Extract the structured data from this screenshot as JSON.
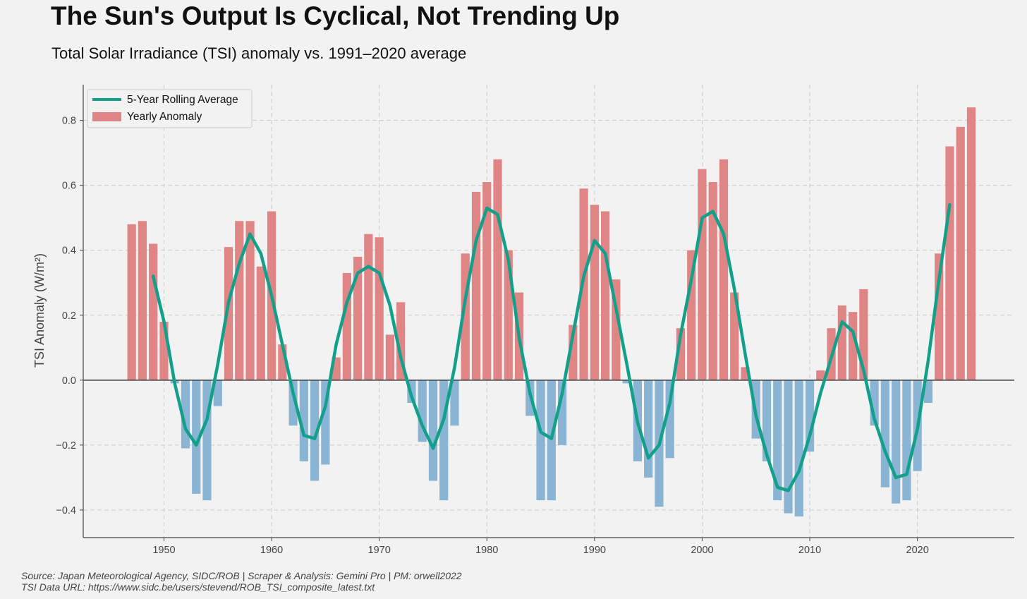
{
  "header": {
    "title": "The Sun's Output Is Cyclical, Not Trending Up",
    "subtitle": "Total Solar Irradiance (TSI) anomaly vs. 1991–2020 average"
  },
  "footer": {
    "source_line": "Source: Japan Meteorological Agency, SIDC/ROB | Scraper & Analysis: Gemini Pro | PM: orwell2022",
    "url_line": "TSI Data URL: https://www.sidc.be/users/stevend/ROB_TSI_composite_latest.txt"
  },
  "colors": {
    "positive_bar": "#e08585",
    "negative_bar": "#8ab4d4",
    "rolling_line": "#12a08a",
    "zero_line": "#444444",
    "grid": "#cccccc",
    "axis": "#444444"
  },
  "chart_data": {
    "type": "bar",
    "title": "The Sun's Output Is Cyclical, Not Trending Up",
    "subtitle": "Total Solar Irradiance (TSI) anomaly vs. 1991–2020 average",
    "xlabel": "",
    "ylabel": "TSI Anomaly (W/m²)",
    "xlim": [
      1942.5,
      2029
    ],
    "ylim": [
      -0.485,
      0.91
    ],
    "xticks": [
      1950,
      1960,
      1970,
      1980,
      1990,
      2000,
      2010,
      2020
    ],
    "yticks": [
      -0.4,
      -0.2,
      0.0,
      0.2,
      0.4,
      0.6,
      0.8
    ],
    "ytick_labels": [
      "−0.4",
      "−0.2",
      "0.0",
      "0.2",
      "0.4",
      "0.6",
      "0.8"
    ],
    "grid": true,
    "legend_position": "top-left",
    "series": [
      {
        "name": "Yearly Anomaly",
        "type": "bar",
        "x": [
          1947,
          1948,
          1949,
          1950,
          1951,
          1952,
          1953,
          1954,
          1955,
          1956,
          1957,
          1958,
          1959,
          1960,
          1961,
          1962,
          1963,
          1964,
          1965,
          1966,
          1967,
          1968,
          1969,
          1970,
          1971,
          1972,
          1973,
          1974,
          1975,
          1976,
          1977,
          1978,
          1979,
          1980,
          1981,
          1982,
          1983,
          1984,
          1985,
          1986,
          1987,
          1988,
          1989,
          1990,
          1991,
          1992,
          1993,
          1994,
          1995,
          1996,
          1997,
          1998,
          1999,
          2000,
          2001,
          2002,
          2003,
          2004,
          2005,
          2006,
          2007,
          2008,
          2009,
          2010,
          2011,
          2012,
          2013,
          2014,
          2015,
          2016,
          2017,
          2018,
          2019,
          2020,
          2021,
          2022,
          2023,
          2024,
          2025
        ],
        "values": [
          0.48,
          0.49,
          0.42,
          0.18,
          -0.01,
          -0.21,
          -0.35,
          -0.37,
          -0.08,
          0.41,
          0.49,
          0.49,
          0.35,
          0.52,
          0.11,
          -0.14,
          -0.25,
          -0.31,
          -0.26,
          0.07,
          0.33,
          0.38,
          0.45,
          0.44,
          0.14,
          0.24,
          -0.07,
          -0.19,
          -0.31,
          -0.37,
          -0.14,
          0.39,
          0.58,
          0.61,
          0.68,
          0.4,
          0.27,
          -0.11,
          -0.37,
          -0.37,
          -0.2,
          0.17,
          0.59,
          0.54,
          0.52,
          0.31,
          -0.01,
          -0.25,
          -0.3,
          -0.39,
          -0.24,
          0.16,
          0.4,
          0.65,
          0.61,
          0.68,
          0.27,
          0.04,
          -0.18,
          -0.25,
          -0.37,
          -0.41,
          -0.42,
          -0.22,
          0.03,
          0.16,
          0.23,
          0.21,
          0.28,
          -0.14,
          -0.33,
          -0.38,
          -0.37,
          -0.28,
          -0.07,
          0.39,
          0.72,
          0.78,
          0.84
        ]
      },
      {
        "name": "5-Year Rolling Average",
        "type": "line",
        "x": [
          1949,
          1950,
          1951,
          1952,
          1953,
          1954,
          1955,
          1956,
          1957,
          1958,
          1959,
          1960,
          1961,
          1962,
          1963,
          1964,
          1965,
          1966,
          1967,
          1968,
          1969,
          1970,
          1971,
          1972,
          1973,
          1974,
          1975,
          1976,
          1977,
          1978,
          1979,
          1980,
          1981,
          1982,
          1983,
          1984,
          1985,
          1986,
          1987,
          1988,
          1989,
          1990,
          1991,
          1992,
          1993,
          1994,
          1995,
          1996,
          1997,
          1998,
          1999,
          2000,
          2001,
          2002,
          2003,
          2004,
          2005,
          2006,
          2007,
          2008,
          2009,
          2010,
          2011,
          2012,
          2013,
          2014,
          2015,
          2016,
          2017,
          2018,
          2019,
          2020,
          2021,
          2022,
          2023
        ],
        "values": [
          0.32,
          0.18,
          -0.01,
          -0.15,
          -0.2,
          -0.12,
          0.05,
          0.24,
          0.36,
          0.45,
          0.39,
          0.26,
          0.11,
          -0.04,
          -0.17,
          -0.18,
          -0.08,
          0.11,
          0.24,
          0.33,
          0.35,
          0.33,
          0.23,
          0.07,
          -0.05,
          -0.14,
          -0.21,
          -0.12,
          0.04,
          0.25,
          0.43,
          0.53,
          0.51,
          0.37,
          0.13,
          -0.04,
          -0.16,
          -0.18,
          -0.04,
          0.14,
          0.32,
          0.43,
          0.39,
          0.22,
          0.05,
          -0.13,
          -0.24,
          -0.2,
          -0.07,
          0.14,
          0.31,
          0.5,
          0.52,
          0.45,
          0.28,
          0.08,
          -0.11,
          -0.23,
          -0.33,
          -0.34,
          -0.28,
          -0.17,
          -0.04,
          0.07,
          0.18,
          0.15,
          0.03,
          -0.12,
          -0.22,
          -0.3,
          -0.29,
          -0.15,
          0.06,
          0.31,
          0.54
        ]
      }
    ]
  }
}
